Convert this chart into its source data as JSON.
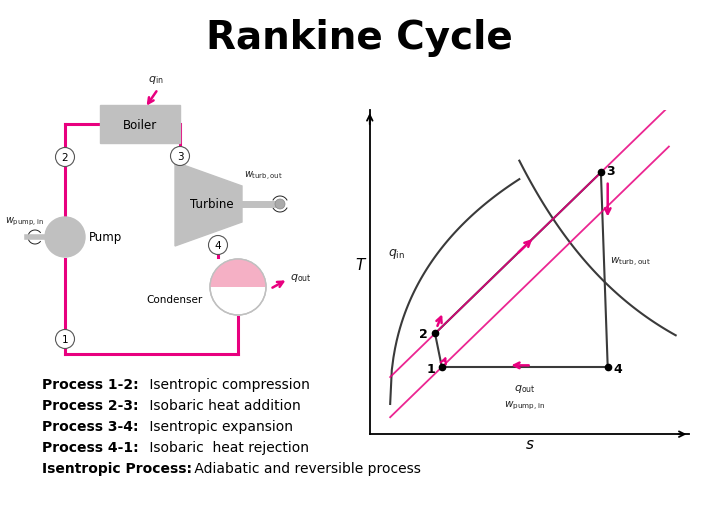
{
  "title": "Rankine Cycle",
  "title_fontsize": 28,
  "title_fontweight": "bold",
  "bg_color": "#ffffff",
  "pink": "#e8007f",
  "light_gray": "#c0c0c0",
  "dark": "#222222",
  "processes": [
    {
      "label": "Process 1-2:",
      "desc": " Isentropic compression"
    },
    {
      "label": "Process 2-3:",
      "desc": " Isobaric heat addition"
    },
    {
      "label": "Process 3-4:",
      "desc": " Isentropic expansion"
    },
    {
      "label": "Process 4-1:",
      "desc": " Isobaric  heat rejection"
    },
    {
      "label": "Isentropic Process:",
      "desc": " Adiabatic and reversible process"
    }
  ],
  "ts_points": {
    "s1": 0.38,
    "T1": 0.22,
    "s2": 0.33,
    "T2": 0.42,
    "s3": 1.55,
    "T3": 1.38,
    "s4": 1.6,
    "T4": 0.22
  }
}
